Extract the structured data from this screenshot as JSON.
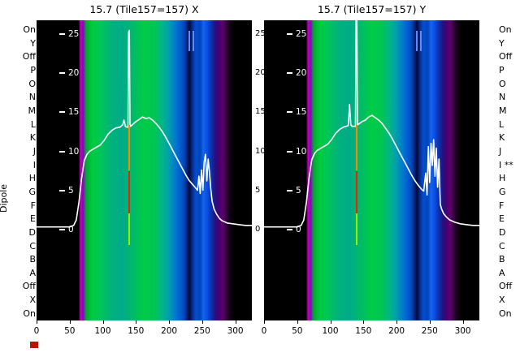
{
  "dipole_axis": {
    "label": "Dipole",
    "left_labels": [
      "On",
      "Y",
      "Off",
      "P",
      "O",
      "N",
      "M",
      "L",
      "K",
      "J",
      "I",
      "H",
      "G",
      "F",
      "E",
      "D",
      "C",
      "B",
      "A",
      "Off",
      "X",
      "On"
    ],
    "right_labels": [
      "On",
      "Y",
      "Off",
      "P",
      "O",
      "N",
      "M",
      "L",
      "K",
      "J",
      "I **",
      "H",
      "G",
      "F",
      "E",
      "D",
      "C",
      "B",
      "A",
      "Off",
      "X",
      "On"
    ]
  },
  "colors": {
    "trace": "#ffffff",
    "red_artifact": "#b81400",
    "background": "#ffffff",
    "plot_background": "#000000"
  },
  "chart_data": [
    {
      "type": "heatmap",
      "title": "15.7 (Tile157=157) X",
      "xlabel": "",
      "ylabel": "",
      "xlim": [
        0,
        325
      ],
      "xticks": [
        0,
        50,
        100,
        150,
        200,
        250,
        300
      ],
      "ylim": [
        -11.7,
        26.8
      ],
      "yticks": [
        25,
        20,
        15,
        10,
        5,
        0
      ],
      "mirror_ticks": true,
      "colormap_stops": [
        {
          "pos": 0,
          "color": "#000000"
        },
        {
          "pos": 19.5,
          "color": "#000000"
        },
        {
          "pos": 20.5,
          "color": "#cc00cc"
        },
        {
          "pos": 21.5,
          "color": "#8800bb"
        },
        {
          "pos": 23,
          "color": "#00a832"
        },
        {
          "pos": 26,
          "color": "#00cc3f"
        },
        {
          "pos": 30,
          "color": "#00c45c"
        },
        {
          "pos": 35,
          "color": "#00b07e"
        },
        {
          "pos": 40,
          "color": "#00ab88"
        },
        {
          "pos": 45,
          "color": "#00bb66"
        },
        {
          "pos": 50,
          "color": "#00cc44"
        },
        {
          "pos": 55,
          "color": "#00c455"
        },
        {
          "pos": 58,
          "color": "#00b884"
        },
        {
          "pos": 61,
          "color": "#00a2aa"
        },
        {
          "pos": 63.5,
          "color": "#0084c4"
        },
        {
          "pos": 66,
          "color": "#0066d4"
        },
        {
          "pos": 68.5,
          "color": "#0048bb"
        },
        {
          "pos": 70,
          "color": "#002277"
        },
        {
          "pos": 71,
          "color": "#000a33"
        },
        {
          "pos": 72.5,
          "color": "#0a2e99"
        },
        {
          "pos": 74,
          "color": "#0050cc"
        },
        {
          "pos": 76,
          "color": "#0044bb"
        },
        {
          "pos": 77.5,
          "color": "#1464ee"
        },
        {
          "pos": 79.5,
          "color": "#0a4ae0"
        },
        {
          "pos": 81,
          "color": "#0a33aa"
        },
        {
          "pos": 83,
          "color": "#251080"
        },
        {
          "pos": 85,
          "color": "#4a0070"
        },
        {
          "pos": 86.5,
          "color": "#60006a"
        },
        {
          "pos": 88,
          "color": "#340040"
        },
        {
          "pos": 90,
          "color": "#0d0010"
        },
        {
          "pos": 92,
          "color": "#000000"
        },
        {
          "pos": 100,
          "color": "#000000"
        }
      ],
      "line": {
        "name": "power-trace-x",
        "color": "#ffffff",
        "x": [
          0,
          30,
          50,
          56,
          60,
          64,
          68,
          72,
          76,
          80,
          88,
          96,
          102,
          108,
          114,
          120,
          126,
          130,
          132,
          134,
          136,
          138,
          139,
          140,
          141,
          142,
          146,
          150,
          155,
          160,
          165,
          170,
          175,
          180,
          185,
          190,
          195,
          200,
          205,
          210,
          215,
          220,
          225,
          230,
          235,
          240,
          243,
          245,
          247,
          249,
          251,
          253,
          255,
          257,
          259,
          261,
          263,
          265,
          268,
          272,
          276,
          280,
          288,
          296,
          305,
          315,
          325
        ],
        "y": [
          0.3,
          0.3,
          0.3,
          0.5,
          1.2,
          3.5,
          6.5,
          8.8,
          9.6,
          10.0,
          10.4,
          10.8,
          11.4,
          12.2,
          12.7,
          13.0,
          13.1,
          13.4,
          14.0,
          13.2,
          13.1,
          13.1,
          25.3,
          25.5,
          13.3,
          13.2,
          13.5,
          13.8,
          14.1,
          14.4,
          14.2,
          14.3,
          14.0,
          13.6,
          13.1,
          12.5,
          11.8,
          11.0,
          10.2,
          9.4,
          8.6,
          7.8,
          7.0,
          6.3,
          5.8,
          5.3,
          5.0,
          6.8,
          4.6,
          7.6,
          5.0,
          8.6,
          9.6,
          6.2,
          9.0,
          7.4,
          5.2,
          3.6,
          2.6,
          1.9,
          1.4,
          1.1,
          0.8,
          0.7,
          0.6,
          0.5,
          0.5
        ]
      },
      "overlay_lines": [
        {
          "name": "cal-line-orange",
          "x": 140,
          "y1": 7.5,
          "y2": 13.4,
          "color": "#ff8800"
        },
        {
          "name": "cal-line-red",
          "x": 140,
          "y1": 2.0,
          "y2": 7.5,
          "color": "#ee2200"
        },
        {
          "name": "cal-line-green",
          "x": 140,
          "y1": -2.0,
          "y2": 2.0,
          "color": "#99ee00"
        },
        {
          "name": "rfi-tick-1",
          "x": 231,
          "y1": 22.8,
          "y2": 25.5,
          "color": "#5c8cff"
        },
        {
          "name": "rfi-tick-2",
          "x": 237,
          "y1": 22.8,
          "y2": 25.5,
          "color": "#5c8cff"
        }
      ]
    },
    {
      "type": "heatmap",
      "title": "15.7 (Tile157=157) Y",
      "xlabel": "",
      "ylabel": "",
      "xlim": [
        0,
        325
      ],
      "xticks": [
        0,
        50,
        100,
        150,
        200,
        250,
        300
      ],
      "ylim": [
        -11.7,
        26.8
      ],
      "yticks": [
        25,
        20,
        15,
        10,
        5,
        0
      ],
      "mirror_ticks": false,
      "colormap_stops": [
        {
          "pos": 0,
          "color": "#000000"
        },
        {
          "pos": 19.5,
          "color": "#000000"
        },
        {
          "pos": 20.5,
          "color": "#cc00cc"
        },
        {
          "pos": 21.5,
          "color": "#8800bb"
        },
        {
          "pos": 23,
          "color": "#00a832"
        },
        {
          "pos": 26,
          "color": "#00cc3f"
        },
        {
          "pos": 30,
          "color": "#00c45c"
        },
        {
          "pos": 35,
          "color": "#00b07e"
        },
        {
          "pos": 40,
          "color": "#00ab88"
        },
        {
          "pos": 45,
          "color": "#00bb66"
        },
        {
          "pos": 50,
          "color": "#00cc44"
        },
        {
          "pos": 55,
          "color": "#00c455"
        },
        {
          "pos": 58,
          "color": "#00b884"
        },
        {
          "pos": 61,
          "color": "#00a2aa"
        },
        {
          "pos": 63.5,
          "color": "#0084c4"
        },
        {
          "pos": 66,
          "color": "#0066d4"
        },
        {
          "pos": 68.5,
          "color": "#0048bb"
        },
        {
          "pos": 70,
          "color": "#002277"
        },
        {
          "pos": 71,
          "color": "#000a33"
        },
        {
          "pos": 72.5,
          "color": "#0a2e99"
        },
        {
          "pos": 74,
          "color": "#0050cc"
        },
        {
          "pos": 76,
          "color": "#0044bb"
        },
        {
          "pos": 77.5,
          "color": "#1464ee"
        },
        {
          "pos": 79.5,
          "color": "#0a4ae0"
        },
        {
          "pos": 81,
          "color": "#0a33aa"
        },
        {
          "pos": 83,
          "color": "#251080"
        },
        {
          "pos": 85,
          "color": "#4a0070"
        },
        {
          "pos": 86.5,
          "color": "#60006a"
        },
        {
          "pos": 88,
          "color": "#340040"
        },
        {
          "pos": 90,
          "color": "#0d0010"
        },
        {
          "pos": 92,
          "color": "#000000"
        },
        {
          "pos": 100,
          "color": "#000000"
        }
      ],
      "line": {
        "name": "power-trace-y",
        "color": "#ffffff",
        "x": [
          0,
          30,
          50,
          56,
          60,
          64,
          68,
          72,
          76,
          80,
          88,
          96,
          102,
          108,
          114,
          120,
          124,
          127,
          129,
          131,
          133,
          136,
          138,
          139,
          140,
          141,
          143,
          148,
          153,
          158,
          163,
          168,
          173,
          178,
          183,
          188,
          193,
          198,
          203,
          208,
          213,
          218,
          223,
          228,
          233,
          238,
          241,
          244,
          246,
          248,
          250,
          252,
          254,
          256,
          258,
          260,
          262,
          264,
          266,
          268,
          271,
          275,
          280,
          288,
          296,
          305,
          315,
          325
        ],
        "y": [
          0.3,
          0.3,
          0.3,
          0.5,
          1.2,
          3.5,
          6.6,
          8.9,
          9.7,
          10.1,
          10.5,
          10.9,
          11.5,
          12.3,
          12.8,
          13.1,
          13.2,
          13.3,
          16.0,
          13.4,
          13.2,
          13.2,
          13.2,
          27.5,
          27.5,
          13.4,
          13.5,
          13.8,
          14.0,
          14.4,
          14.6,
          14.3,
          14.0,
          13.6,
          13.0,
          12.4,
          11.7,
          10.9,
          10.1,
          9.3,
          8.5,
          7.7,
          6.9,
          6.2,
          5.6,
          5.1,
          4.9,
          7.2,
          4.4,
          10.6,
          6.0,
          11.0,
          8.2,
          11.5,
          6.8,
          10.4,
          5.4,
          9.0,
          3.2,
          2.6,
          2.0,
          1.6,
          1.2,
          0.9,
          0.7,
          0.6,
          0.5,
          0.5
        ]
      },
      "overlay_lines": [
        {
          "name": "cal-line-orange",
          "x": 140,
          "y1": 7.5,
          "y2": 13.4,
          "color": "#ff8800"
        },
        {
          "name": "cal-line-red",
          "x": 140,
          "y1": 2.0,
          "y2": 7.5,
          "color": "#ee2200"
        },
        {
          "name": "cal-line-green",
          "x": 140,
          "y1": -2.0,
          "y2": 2.0,
          "color": "#99ee00"
        },
        {
          "name": "rfi-tick-1",
          "x": 231,
          "y1": 22.8,
          "y2": 25.5,
          "color": "#5c8cff"
        },
        {
          "name": "rfi-tick-2",
          "x": 237,
          "y1": 22.8,
          "y2": 25.5,
          "color": "#5c8cff"
        }
      ]
    }
  ]
}
